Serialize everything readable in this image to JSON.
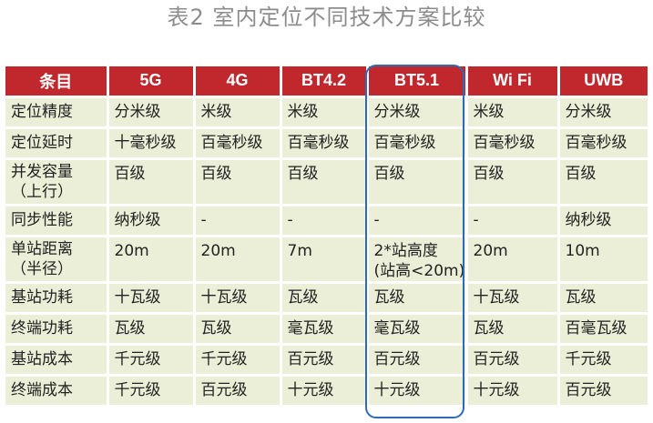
{
  "title": "表2 室内定位不同技术方案比较",
  "table": {
    "headers": [
      "条目",
      "5G",
      "4G",
      "BT4.2",
      "BT5.1",
      "Wi Fi",
      "UWB"
    ],
    "rows": [
      {
        "label": "定位精度",
        "values": [
          "分米级",
          "米级",
          "米级",
          "分米级",
          "米级",
          "分米级"
        ]
      },
      {
        "label": "定位延时",
        "values": [
          "十毫秒级",
          "百毫秒级",
          "百毫秒级",
          "百毫秒级",
          "百毫秒级",
          "百毫秒级"
        ]
      },
      {
        "label": "并发容量\n（上行）",
        "values": [
          "百级",
          "百级",
          "百级",
          "百级",
          "百级",
          "百级"
        ]
      },
      {
        "label": "同步性能",
        "values": [
          "纳秒级",
          "-",
          "-",
          "-",
          "-",
          "纳秒级"
        ]
      },
      {
        "label": "单站距离\n（半径）",
        "values": [
          "20m",
          "20m",
          "7m",
          "2*站高度\n(站高<20m)",
          "20m",
          "10m"
        ]
      },
      {
        "label": "基站功耗",
        "values": [
          "十瓦级",
          "十瓦级",
          "瓦级",
          "瓦级",
          "十瓦级",
          "瓦级"
        ]
      },
      {
        "label": "终端功耗",
        "values": [
          "瓦级",
          "瓦级",
          "毫瓦级",
          "毫瓦级",
          "瓦级",
          "百毫瓦级"
        ]
      },
      {
        "label": "基站成本",
        "values": [
          "千元级",
          "千元级",
          "百元级",
          "百元级",
          "百元级",
          "千元级"
        ]
      },
      {
        "label": "终端成本",
        "values": [
          "千元级",
          "百元级",
          "十元级",
          "十元级",
          "十元级",
          "百元级"
        ]
      }
    ]
  },
  "colors": {
    "header_bg": "#c0282d",
    "cell_bg": "#ecefd8",
    "highlight_border": "#2f6ab5"
  }
}
